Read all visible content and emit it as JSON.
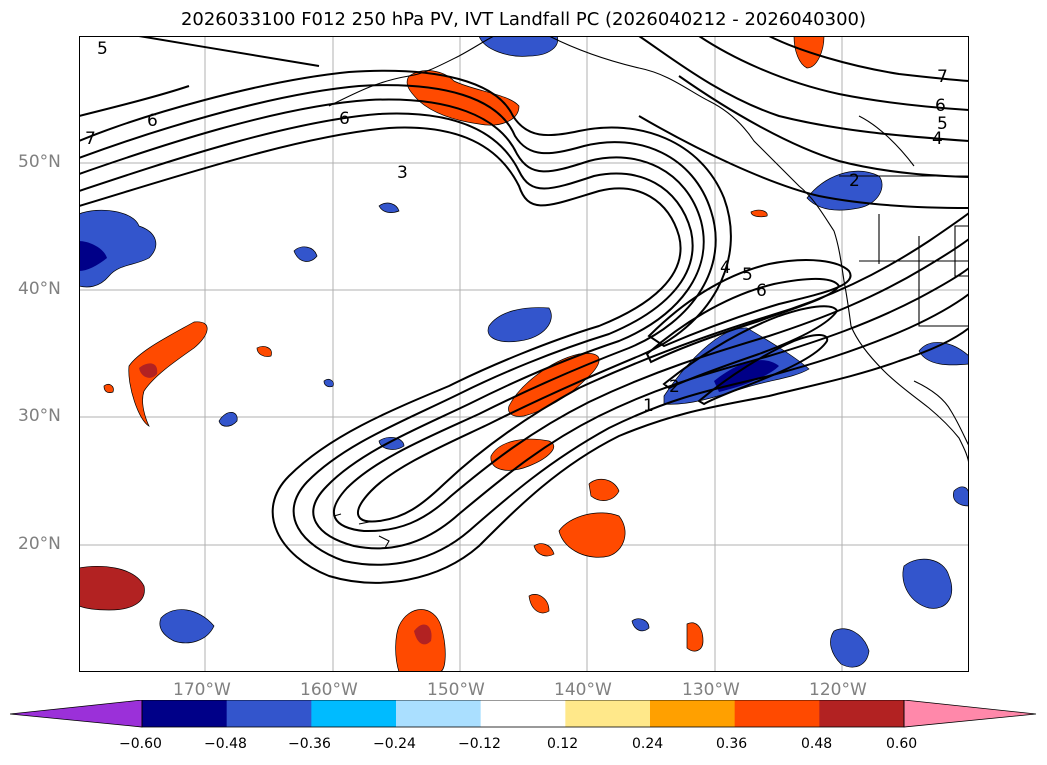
{
  "title": "2026033100 F012 250 hPa PV, IVT Landfall PC (2026040212 - 2026040300)",
  "lat_labels": [
    "50°N",
    "40°N",
    "30°N",
    "20°N"
  ],
  "lon_labels": [
    "170°W",
    "160°W",
    "150°W",
    "140°W",
    "130°W",
    "120°W"
  ],
  "colorbar": {
    "ticks": [
      "−0.60",
      "−0.48",
      "−0.36",
      "−0.24",
      "−0.12",
      "0.12",
      "0.24",
      "0.36",
      "0.48",
      "0.60"
    ],
    "colors": [
      "#9b30d9",
      "#000088",
      "#3355cc",
      "#00bbff",
      "#aadfff",
      "#ffffff",
      "#ffe88a",
      "#ffa000",
      "#ff4a00",
      "#b22222",
      "#ff88aa"
    ]
  },
  "contour_labels": [
    "5",
    "6",
    "7",
    "6",
    "3",
    "7",
    "6",
    "5",
    "4",
    "2",
    "4",
    "5",
    "6",
    "1",
    "2"
  ],
  "colors": {
    "land_line": "#000000",
    "grid": "#b0b0b0",
    "contour": "#000000"
  }
}
